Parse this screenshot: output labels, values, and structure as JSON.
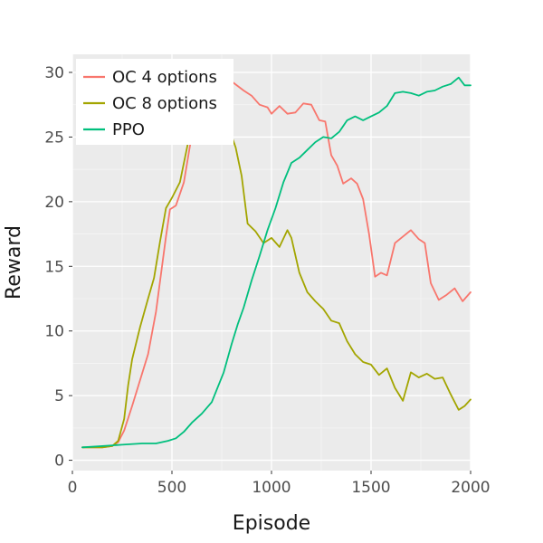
{
  "chart_data": {
    "type": "line",
    "xlabel": "Episode",
    "ylabel": "Reward",
    "xlim": [
      0,
      2000
    ],
    "ylim": [
      -0.8,
      31.4
    ],
    "xticks": [
      0,
      500,
      1000,
      1500,
      2000
    ],
    "yticks": [
      0,
      5,
      10,
      15,
      20,
      25,
      30
    ],
    "grid": true,
    "legend_position": "top-left",
    "series": [
      {
        "name": "OC 4 options",
        "color": "#F8766D",
        "x": [
          50,
          150,
          200,
          230,
          260,
          300,
          340,
          380,
          420,
          470,
          490,
          520,
          560,
          600,
          640,
          700,
          760,
          800,
          860,
          900,
          940,
          980,
          1000,
          1040,
          1080,
          1120,
          1160,
          1200,
          1240,
          1270,
          1300,
          1330,
          1360,
          1400,
          1430,
          1460,
          1490,
          1520,
          1550,
          1580,
          1620,
          1660,
          1700,
          1740,
          1770,
          1800,
          1840,
          1880,
          1920,
          1960,
          2000
        ],
        "y": [
          1.0,
          1.0,
          1.1,
          1.4,
          2.3,
          4.2,
          6.2,
          8.2,
          11.5,
          17.3,
          19.4,
          19.7,
          21.5,
          25.2,
          28.6,
          30.5,
          30.0,
          29.3,
          28.6,
          28.2,
          27.5,
          27.3,
          26.8,
          27.4,
          26.8,
          26.9,
          27.6,
          27.5,
          26.3,
          26.2,
          23.6,
          22.8,
          21.4,
          21.8,
          21.4,
          20.2,
          17.5,
          14.2,
          14.5,
          14.3,
          16.8,
          17.3,
          17.8,
          17.1,
          16.8,
          13.7,
          12.4,
          12.8,
          13.3,
          12.3,
          13.0
        ]
      },
      {
        "name": "OC 8 options",
        "color": "#A3A500",
        "x": [
          50,
          150,
          200,
          230,
          260,
          280,
          300,
          340,
          380,
          410,
          440,
          470,
          500,
          540,
          580,
          620,
          680,
          740,
          790,
          820,
          850,
          880,
          920,
          960,
          1000,
          1040,
          1080,
          1100,
          1140,
          1180,
          1220,
          1260,
          1300,
          1340,
          1380,
          1420,
          1460,
          1500,
          1540,
          1580,
          1620,
          1660,
          1700,
          1740,
          1780,
          1820,
          1860,
          1900,
          1940,
          1970,
          2000
        ],
        "y": [
          1.0,
          1.0,
          1.1,
          1.5,
          3.2,
          5.8,
          7.8,
          10.3,
          12.5,
          14.1,
          16.9,
          19.5,
          20.3,
          21.5,
          24.5,
          26.9,
          27.3,
          26.5,
          25.5,
          24.2,
          22.0,
          18.3,
          17.7,
          16.8,
          17.2,
          16.5,
          17.8,
          17.2,
          14.5,
          13.0,
          12.3,
          11.7,
          10.8,
          10.6,
          9.2,
          8.2,
          7.6,
          7.4,
          6.6,
          7.1,
          5.6,
          4.6,
          6.8,
          6.4,
          6.7,
          6.3,
          6.4,
          5.1,
          3.9,
          4.2,
          4.7
        ]
      },
      {
        "name": "PPO",
        "color": "#00BF7D",
        "x": [
          50,
          150,
          250,
          350,
          420,
          480,
          520,
          560,
          600,
          650,
          700,
          760,
          800,
          830,
          860,
          900,
          940,
          980,
          1020,
          1060,
          1100,
          1140,
          1180,
          1220,
          1260,
          1300,
          1340,
          1380,
          1420,
          1460,
          1500,
          1540,
          1580,
          1620,
          1660,
          1700,
          1740,
          1780,
          1820,
          1860,
          1900,
          1940,
          1970,
          2000
        ],
        "y": [
          1.0,
          1.1,
          1.2,
          1.3,
          1.3,
          1.5,
          1.7,
          2.2,
          2.9,
          3.6,
          4.5,
          6.8,
          9.0,
          10.5,
          11.8,
          13.9,
          15.8,
          17.8,
          19.5,
          21.5,
          23.0,
          23.4,
          24.0,
          24.6,
          25.0,
          24.9,
          25.4,
          26.3,
          26.6,
          26.3,
          26.6,
          26.9,
          27.4,
          28.4,
          28.5,
          28.4,
          28.2,
          28.5,
          28.6,
          28.9,
          29.1,
          29.6,
          29.0,
          29.0
        ]
      }
    ]
  }
}
